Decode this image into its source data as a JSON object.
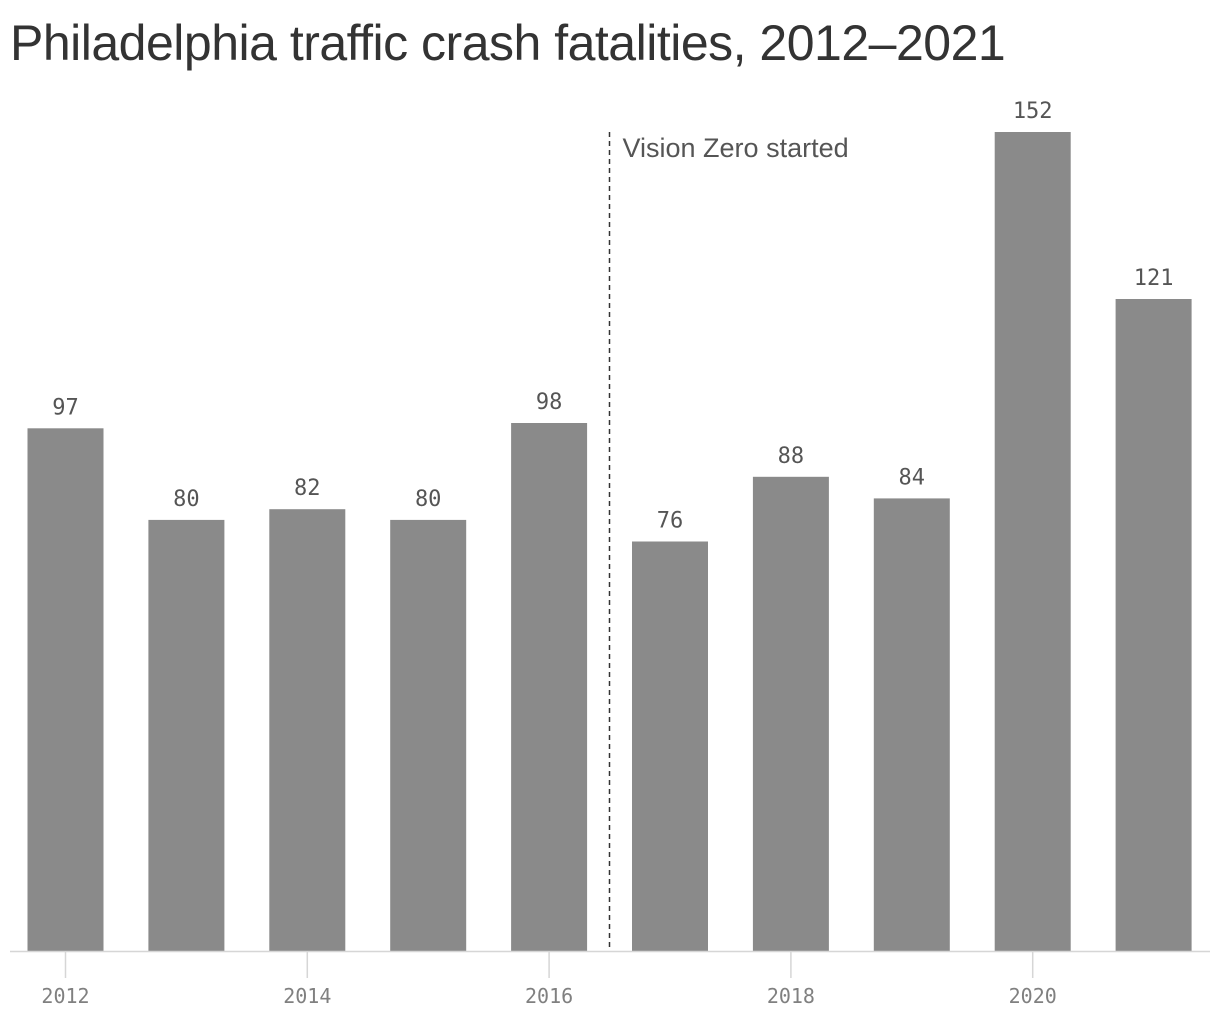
{
  "chart_data": {
    "type": "bar",
    "title": "Philadelphia traffic crash fatalities, 2012–2021",
    "categories": [
      "2012",
      "2013",
      "2014",
      "2015",
      "2016",
      "2017",
      "2018",
      "2019",
      "2020",
      "2021"
    ],
    "values": [
      97,
      80,
      82,
      80,
      98,
      76,
      88,
      84,
      152,
      121
    ],
    "x_tick_labels": [
      "2012",
      "2014",
      "2016",
      "2018",
      "2020"
    ],
    "xlabel": "",
    "ylabel": "",
    "ylim": [
      0,
      152
    ],
    "grid": false,
    "bar_color": "#8a8a8a",
    "data_labels": true,
    "annotation": {
      "text": "Vision Zero started",
      "between": [
        "2016",
        "2017"
      ],
      "line_style": "dashed"
    }
  }
}
